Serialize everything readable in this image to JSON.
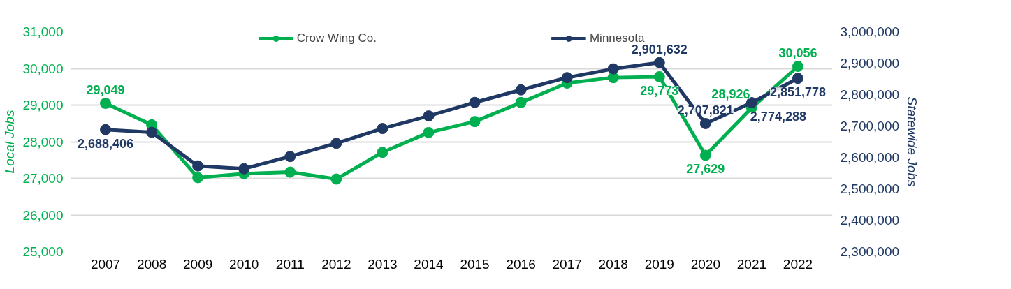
{
  "chart_data": {
    "type": "line",
    "categories": [
      "2007",
      "2008",
      "2009",
      "2010",
      "2011",
      "2012",
      "2013",
      "2014",
      "2015",
      "2016",
      "2017",
      "2018",
      "2019",
      "2020",
      "2021",
      "2022"
    ],
    "ylabel": "Local Jobs",
    "y2label": "Statewide Jobs",
    "ylim": [
      25000,
      31000
    ],
    "yticks": [
      {
        "value": 25000,
        "label": "25,000"
      },
      {
        "value": 26000,
        "label": "26,000"
      },
      {
        "value": 27000,
        "label": "27,000"
      },
      {
        "value": 28000,
        "label": "28,000"
      },
      {
        "value": 29000,
        "label": "29,000"
      },
      {
        "value": 30000,
        "label": "30,000"
      },
      {
        "value": 31000,
        "label": "31,000"
      }
    ],
    "y2lim": [
      2300000,
      3000000
    ],
    "y2ticks": [
      {
        "value": 2300000,
        "label": "2,300,000"
      },
      {
        "value": 2400000,
        "label": "2,400,000"
      },
      {
        "value": 2500000,
        "label": "2,500,000"
      },
      {
        "value": 2600000,
        "label": "2,600,000"
      },
      {
        "value": 2700000,
        "label": "2,700,000"
      },
      {
        "value": 2800000,
        "label": "2,800,000"
      },
      {
        "value": 2900000,
        "label": "2,900,000"
      },
      {
        "value": 3000000,
        "label": "3,000,000"
      }
    ],
    "series": [
      {
        "name": "Crow Wing Co.",
        "color": "#00b050",
        "values": [
          29049,
          28460,
          27020,
          27130,
          27170,
          26980,
          27710,
          28250,
          28550,
          29070,
          29600,
          29750,
          29773,
          27629,
          28926,
          30056
        ],
        "value_labels": [
          "29,049",
          null,
          null,
          null,
          null,
          null,
          null,
          null,
          null,
          null,
          null,
          null,
          "29,773",
          "27,629",
          "28,926",
          "30,056"
        ]
      },
      {
        "name": "Minnesota",
        "color": "#203864",
        "axis": "y2",
        "values": [
          2688406,
          2680000,
          2573000,
          2564000,
          2603000,
          2645000,
          2692000,
          2732000,
          2775000,
          2815000,
          2854000,
          2882000,
          2901632,
          2707821,
          2774288,
          2851778
        ],
        "value_labels": [
          "2,688,406",
          null,
          null,
          null,
          null,
          null,
          null,
          null,
          null,
          null,
          null,
          null,
          "2,901,632",
          "2,707,821",
          "2,774,288",
          "2,851,778"
        ]
      }
    ],
    "marker": "circle",
    "line_style": "solid",
    "grid": "y",
    "legend": "top"
  }
}
